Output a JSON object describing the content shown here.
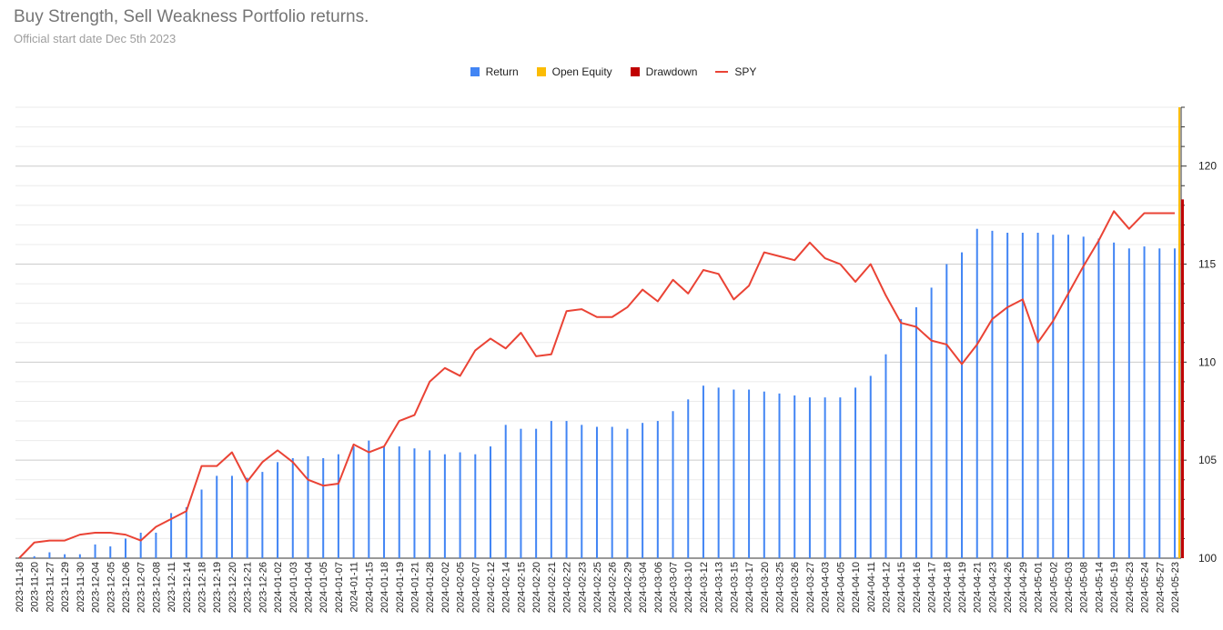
{
  "header": {
    "title": "Buy Strength, Sell Weakness Portfolio returns.",
    "subtitle": "Official start date Dec 5th 2023"
  },
  "chart_data": {
    "type": "bar",
    "title": "Buy Strength, Sell Weakness Portfolio returns.",
    "subtitle": "Official start date Dec 5th 2023",
    "xlabel": "",
    "ylabel": "",
    "ylim": [
      100,
      123
    ],
    "y_axis_side": "right",
    "y_ticks": [
      100,
      105,
      110,
      115,
      120
    ],
    "grid": true,
    "legend_position": "top",
    "legend": [
      {
        "name": "Return",
        "color": "#4285f4",
        "kind": "bar"
      },
      {
        "name": "Open Equity",
        "color": "#fbbc04",
        "kind": "bar"
      },
      {
        "name": "Drawdown",
        "color": "#c00000",
        "kind": "bar"
      },
      {
        "name": "SPY",
        "color": "#ea4335",
        "kind": "line"
      }
    ],
    "categories": [
      "2023-11-18",
      "2023-11-20",
      "2023-11-27",
      "2023-11-29",
      "2023-11-30",
      "2023-12-04",
      "2023-12-05",
      "2023-12-06",
      "2023-12-07",
      "2023-12-08",
      "2023-12-11",
      "2023-12-14",
      "2023-12-18",
      "2023-12-19",
      "2023-12-20",
      "2023-12-21",
      "2023-12-26",
      "2024-01-02",
      "2024-01-03",
      "2024-01-04",
      "2024-01-05",
      "2024-01-07",
      "2024-01-11",
      "2024-01-15",
      "2024-01-18",
      "2024-01-19",
      "2024-01-21",
      "2024-01-28",
      "2024-02-02",
      "2024-02-05",
      "2024-02-07",
      "2024-02-12",
      "2024-02-14",
      "2024-02-15",
      "2024-02-20",
      "2024-02-21",
      "2024-02-22",
      "2024-02-23",
      "2024-02-25",
      "2024-02-26",
      "2024-02-29",
      "2024-03-04",
      "2024-03-06",
      "2024-03-07",
      "2024-03-10",
      "2024-03-12",
      "2024-03-13",
      "2024-03-15",
      "2024-03-17",
      "2024-03-20",
      "2024-03-25",
      "2024-03-26",
      "2024-03-27",
      "2024-04-03",
      "2024-04-05",
      "2024-04-10",
      "2024-04-11",
      "2024-04-12",
      "2024-04-15",
      "2024-04-16",
      "2024-04-17",
      "2024-04-18",
      "2024-04-19",
      "2024-04-21",
      "2024-04-23",
      "2024-04-26",
      "2024-04-29",
      "2024-05-01",
      "2024-05-02",
      "2024-05-03",
      "2024-05-08",
      "2024-05-14",
      "2024-05-19",
      "2024-05-23",
      "2024-05-24",
      "2024-05-27",
      "2024-05-23"
    ],
    "series": [
      {
        "name": "Return",
        "type": "bar",
        "color": "#4285f4",
        "values": [
          100.0,
          100.1,
          100.3,
          100.2,
          100.2,
          100.7,
          100.6,
          101.0,
          101.3,
          101.3,
          102.3,
          102.6,
          103.5,
          104.2,
          104.2,
          104.1,
          104.4,
          104.9,
          105.1,
          105.2,
          105.1,
          105.3,
          105.7,
          106.0,
          105.7,
          105.7,
          105.6,
          105.5,
          105.3,
          105.4,
          105.3,
          105.7,
          106.8,
          106.6,
          106.6,
          107.0,
          107.0,
          106.8,
          106.7,
          106.7,
          106.6,
          106.9,
          107.0,
          107.5,
          108.1,
          108.8,
          108.7,
          108.6,
          108.6,
          108.5,
          108.4,
          108.3,
          108.2,
          108.2,
          108.2,
          108.7,
          109.3,
          110.4,
          112.2,
          112.8,
          113.8,
          115.0,
          115.6,
          116.8,
          116.7,
          116.6,
          116.6,
          116.6,
          116.5,
          116.5,
          116.4,
          116.3,
          116.1,
          115.8,
          115.9,
          115.8,
          115.8
        ]
      },
      {
        "name": "Open Equity",
        "type": "bar",
        "color": "#fbbc04",
        "values": [
          null,
          null,
          null,
          null,
          null,
          null,
          null,
          null,
          null,
          null,
          null,
          null,
          null,
          null,
          null,
          null,
          null,
          null,
          null,
          null,
          null,
          null,
          null,
          null,
          null,
          null,
          null,
          null,
          null,
          null,
          null,
          null,
          null,
          null,
          null,
          null,
          null,
          null,
          null,
          null,
          null,
          null,
          null,
          null,
          null,
          null,
          null,
          null,
          null,
          null,
          null,
          null,
          null,
          null,
          null,
          null,
          null,
          null,
          null,
          null,
          null,
          null,
          null,
          null,
          null,
          null,
          null,
          null,
          null,
          null,
          null,
          null,
          null,
          null,
          null,
          null,
          123.0
        ]
      },
      {
        "name": "Drawdown",
        "type": "bar",
        "color": "#c00000",
        "values": [
          null,
          null,
          null,
          null,
          null,
          null,
          null,
          null,
          null,
          null,
          null,
          null,
          null,
          null,
          null,
          null,
          null,
          null,
          null,
          null,
          null,
          null,
          null,
          null,
          null,
          null,
          null,
          null,
          null,
          null,
          null,
          null,
          null,
          null,
          null,
          null,
          null,
          null,
          null,
          null,
          null,
          null,
          null,
          null,
          null,
          null,
          null,
          null,
          null,
          null,
          null,
          null,
          null,
          null,
          null,
          null,
          null,
          null,
          null,
          null,
          null,
          null,
          null,
          null,
          null,
          null,
          null,
          null,
          null,
          null,
          null,
          null,
          null,
          null,
          null,
          null,
          118.3
        ]
      },
      {
        "name": "SPY",
        "type": "line",
        "color": "#ea4335",
        "values": [
          100.0,
          100.8,
          100.9,
          100.9,
          101.2,
          101.3,
          101.3,
          101.2,
          100.9,
          101.6,
          102.0,
          102.4,
          104.7,
          104.7,
          105.4,
          103.9,
          104.9,
          105.5,
          104.9,
          104.0,
          103.7,
          103.8,
          105.8,
          105.4,
          105.7,
          107.0,
          107.3,
          109.0,
          109.7,
          109.3,
          110.6,
          111.2,
          110.7,
          111.5,
          110.3,
          110.4,
          112.6,
          112.7,
          112.3,
          112.3,
          112.8,
          113.7,
          113.1,
          114.2,
          113.5,
          114.7,
          114.5,
          113.2,
          113.9,
          115.6,
          115.4,
          115.2,
          116.1,
          115.3,
          115.0,
          114.1,
          115.0,
          113.4,
          112.0,
          111.8,
          111.1,
          110.9,
          109.9,
          110.9,
          112.2,
          112.8,
          113.2,
          111.0,
          112.1,
          113.5,
          114.9,
          116.2,
          117.7,
          116.8,
          117.6,
          117.6,
          117.6
        ]
      }
    ]
  }
}
